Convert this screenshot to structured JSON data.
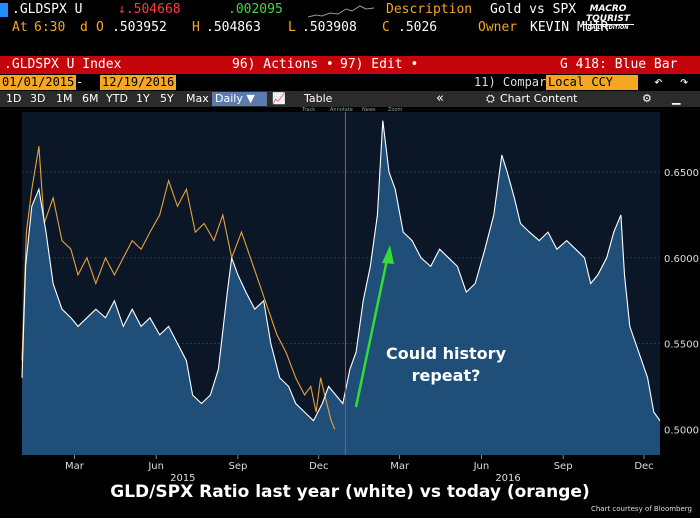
{
  "header": {
    "ticker": ".GLDSPX U",
    "last": "↓.504668",
    "change": ".002095",
    "description_label": "Description",
    "description": "Gold vs SPX",
    "at_label": "At",
    "at_time": "6:30",
    "d_label": "d",
    "o_label": "O",
    "open": ".503952",
    "h_label": "H",
    "high": ".504863",
    "l_label": "L",
    "low": ".503908",
    "c_label": "C",
    "close": ".5026",
    "owner_label": "Owner",
    "owner": "KEVIN MUIR"
  },
  "logo": {
    "line1": "MACRO",
    "line2": "TOURIST",
    "line3": "DAILY EDITION"
  },
  "menubar": {
    "index": ".GLDSPX U Index",
    "actions": "96) Actions •",
    "edit": "97) Edit •",
    "ref": "G 418: Blue Bar"
  },
  "datebar": {
    "start": "01/01/2015",
    "end": "12/19/2016",
    "compare": "11) Compare",
    "ccy": "Local CCY"
  },
  "periodbar": {
    "periods": [
      "1D",
      "3D",
      "1M",
      "6M",
      "YTD",
      "1Y",
      "5Y",
      "Max"
    ],
    "freq": "Daily ▼",
    "table": "Table",
    "chart_content": "Chart Content"
  },
  "mini_tabs": [
    "Track",
    "Annotate",
    "News",
    "Zoom"
  ],
  "annotation": {
    "line1": "Could history",
    "line2": "repeat?"
  },
  "caption": "GLD/SPX Ratio last year (white) vs today (orange)",
  "credit": "Chart courtesy of Bloomberg",
  "chart_data": {
    "type": "line",
    "x_range": [
      "2015-01-01",
      "2016-12-19"
    ],
    "ylim": [
      0.485,
      0.685
    ],
    "y_ticks": [
      "0.6500",
      "0.6000",
      "0.5500",
      "0.5000"
    ],
    "y_tick_values": [
      0.65,
      0.6,
      0.55,
      0.5
    ],
    "x_ticks": [
      {
        "label": "Mar",
        "date": "2015-03-01"
      },
      {
        "label": "Jun",
        "date": "2015-06-01"
      },
      {
        "label": "Sep",
        "date": "2015-09-01"
      },
      {
        "label": "Dec",
        "date": "2015-12-01"
      },
      {
        "label": "Mar",
        "date": "2016-03-01"
      },
      {
        "label": "Jun",
        "date": "2016-06-01"
      },
      {
        "label": "Sep",
        "date": "2016-09-01"
      },
      {
        "label": "Dec",
        "date": "2016-12-01"
      }
    ],
    "year_labels": [
      {
        "label": "2015",
        "date": "2015-07-01"
      },
      {
        "label": "2016",
        "date": "2016-07-01"
      }
    ],
    "divider_date": "2015-12-31",
    "colors": {
      "white": "#ffffff",
      "orange": "#e8a33c",
      "area": "#1f4e79",
      "arrow": "#33dd33"
    },
    "series": [
      {
        "color": "white",
        "points": [
          [
            "2015-01-01",
            0.53
          ],
          [
            "2015-01-05",
            0.595
          ],
          [
            "2015-01-12",
            0.63
          ],
          [
            "2015-01-20",
            0.64
          ],
          [
            "2015-01-28",
            0.615
          ],
          [
            "2015-02-05",
            0.585
          ],
          [
            "2015-02-15",
            0.57
          ],
          [
            "2015-02-25",
            0.565
          ],
          [
            "2015-03-05",
            0.56
          ],
          [
            "2015-03-15",
            0.565
          ],
          [
            "2015-03-25",
            0.57
          ],
          [
            "2015-04-05",
            0.565
          ],
          [
            "2015-04-15",
            0.575
          ],
          [
            "2015-04-25",
            0.56
          ],
          [
            "2015-05-05",
            0.57
          ],
          [
            "2015-05-15",
            0.56
          ],
          [
            "2015-05-25",
            0.565
          ],
          [
            "2015-06-05",
            0.555
          ],
          [
            "2015-06-15",
            0.56
          ],
          [
            "2015-06-25",
            0.55
          ],
          [
            "2015-07-05",
            0.54
          ],
          [
            "2015-07-12",
            0.52
          ],
          [
            "2015-07-22",
            0.515
          ],
          [
            "2015-08-01",
            0.52
          ],
          [
            "2015-08-10",
            0.535
          ],
          [
            "2015-08-20",
            0.58
          ],
          [
            "2015-08-25",
            0.6
          ],
          [
            "2015-09-01",
            0.59
          ],
          [
            "2015-09-10",
            0.58
          ],
          [
            "2015-09-20",
            0.57
          ],
          [
            "2015-09-30",
            0.575
          ],
          [
            "2015-10-08",
            0.55
          ],
          [
            "2015-10-18",
            0.53
          ],
          [
            "2015-10-28",
            0.525
          ],
          [
            "2015-11-05",
            0.515
          ],
          [
            "2015-11-15",
            0.51
          ],
          [
            "2015-11-25",
            0.505
          ],
          [
            "2015-12-05",
            0.515
          ],
          [
            "2015-12-12",
            0.525
          ],
          [
            "2015-12-20",
            0.52
          ],
          [
            "2015-12-28",
            0.515
          ],
          [
            "2016-01-05",
            0.535
          ],
          [
            "2016-01-12",
            0.545
          ],
          [
            "2016-01-20",
            0.575
          ],
          [
            "2016-01-28",
            0.595
          ],
          [
            "2016-02-05",
            0.625
          ],
          [
            "2016-02-11",
            0.68
          ],
          [
            "2016-02-18",
            0.65
          ],
          [
            "2016-02-25",
            0.64
          ],
          [
            "2016-03-05",
            0.615
          ],
          [
            "2016-03-15",
            0.61
          ],
          [
            "2016-03-25",
            0.6
          ],
          [
            "2016-04-05",
            0.595
          ],
          [
            "2016-04-15",
            0.605
          ],
          [
            "2016-04-25",
            0.6
          ],
          [
            "2016-05-05",
            0.595
          ],
          [
            "2016-05-15",
            0.58
          ],
          [
            "2016-05-25",
            0.585
          ],
          [
            "2016-06-05",
            0.605
          ],
          [
            "2016-06-15",
            0.625
          ],
          [
            "2016-06-24",
            0.66
          ],
          [
            "2016-06-30",
            0.65
          ],
          [
            "2016-07-08",
            0.635
          ],
          [
            "2016-07-15",
            0.62
          ],
          [
            "2016-07-25",
            0.615
          ],
          [
            "2016-08-05",
            0.61
          ],
          [
            "2016-08-15",
            0.615
          ],
          [
            "2016-08-25",
            0.605
          ],
          [
            "2016-09-05",
            0.61
          ],
          [
            "2016-09-15",
            0.605
          ],
          [
            "2016-09-25",
            0.6
          ],
          [
            "2016-10-02",
            0.585
          ],
          [
            "2016-10-10",
            0.59
          ],
          [
            "2016-10-20",
            0.6
          ],
          [
            "2016-10-28",
            0.615
          ],
          [
            "2016-11-05",
            0.625
          ],
          [
            "2016-11-09",
            0.59
          ],
          [
            "2016-11-15",
            0.56
          ],
          [
            "2016-11-25",
            0.545
          ],
          [
            "2016-12-05",
            0.53
          ],
          [
            "2016-12-12",
            0.51
          ],
          [
            "2016-12-19",
            0.505
          ]
        ]
      },
      {
        "color": "orange",
        "points": [
          [
            "2015-01-01",
            0.54
          ],
          [
            "2015-01-06",
            0.615
          ],
          [
            "2015-01-12",
            0.64
          ],
          [
            "2015-01-20",
            0.665
          ],
          [
            "2015-01-26",
            0.62
          ],
          [
            "2015-02-05",
            0.635
          ],
          [
            "2015-02-15",
            0.61
          ],
          [
            "2015-02-25",
            0.605
          ],
          [
            "2015-03-05",
            0.59
          ],
          [
            "2015-03-15",
            0.6
          ],
          [
            "2015-03-25",
            0.585
          ],
          [
            "2015-04-05",
            0.6
          ],
          [
            "2015-04-15",
            0.59
          ],
          [
            "2015-04-25",
            0.6
          ],
          [
            "2015-05-05",
            0.61
          ],
          [
            "2015-05-15",
            0.605
          ],
          [
            "2015-05-25",
            0.615
          ],
          [
            "2015-06-05",
            0.625
          ],
          [
            "2015-06-15",
            0.645
          ],
          [
            "2015-06-25",
            0.63
          ],
          [
            "2015-07-05",
            0.64
          ],
          [
            "2015-07-15",
            0.615
          ],
          [
            "2015-07-25",
            0.62
          ],
          [
            "2015-08-05",
            0.61
          ],
          [
            "2015-08-15",
            0.625
          ],
          [
            "2015-08-25",
            0.6
          ],
          [
            "2015-09-05",
            0.615
          ],
          [
            "2015-09-15",
            0.6
          ],
          [
            "2015-09-25",
            0.585
          ],
          [
            "2015-10-05",
            0.57
          ],
          [
            "2015-10-15",
            0.555
          ],
          [
            "2015-10-25",
            0.545
          ],
          [
            "2015-11-05",
            0.53
          ],
          [
            "2015-11-15",
            0.52
          ],
          [
            "2015-11-22",
            0.525
          ],
          [
            "2015-11-28",
            0.51
          ],
          [
            "2015-12-03",
            0.53
          ],
          [
            "2015-12-10",
            0.515
          ],
          [
            "2015-12-15",
            0.505
          ],
          [
            "2015-12-19",
            0.5
          ]
        ]
      }
    ]
  }
}
